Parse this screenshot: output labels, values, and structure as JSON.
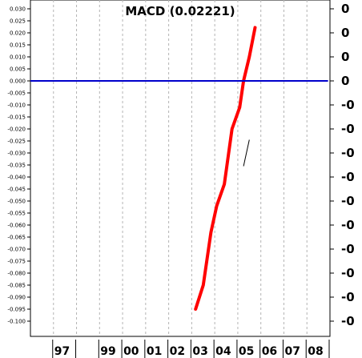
{
  "chart_data": {
    "type": "line",
    "title": "MACD (0.02221)",
    "xlabel": "",
    "ylabel": "",
    "x_tick_labels": [
      "97",
      "99",
      "00",
      "01",
      "02",
      "03",
      "04",
      "05",
      "06",
      "07",
      "08"
    ],
    "y_ticks_left": [
      "0.030",
      "0.025",
      "0.020",
      "0.015",
      "0.010",
      "0.005",
      "0.000",
      "-0.005",
      "-0.010",
      "-0.015",
      "-0.020",
      "-0.025",
      "-0.030",
      "-0.035",
      "-0.040",
      "-0.045",
      "-0.050",
      "-0.055",
      "-0.060",
      "-0.065",
      "-0.070",
      "-0.075",
      "-0.080",
      "-0.085",
      "-0.090",
      "-0.095",
      "-0.100"
    ],
    "y_ticks_right": [
      "0",
      "0",
      "0",
      "0",
      "-0",
      "-0",
      "-0",
      "-0",
      "-0",
      "-0",
      "-0",
      "-0",
      "-0",
      "-0"
    ],
    "ylim": [
      -0.105,
      0.032
    ],
    "grid": true,
    "colors": {
      "macd": "#ff0000",
      "zero_line": "#0000cc",
      "signal": "#000000",
      "grid": "#b4b4b4"
    },
    "series": [
      {
        "role": "macd",
        "x": [
          "2003-03",
          "2003-07",
          "2003-11",
          "2004-02",
          "2004-06",
          "2004-10",
          "2005-02",
          "2005-04",
          "2005-07",
          "2005-10"
        ],
        "y": [
          -0.095,
          -0.085,
          -0.063,
          -0.052,
          -0.043,
          -0.02,
          -0.011,
          0.0,
          0.01,
          0.0222
        ]
      },
      {
        "role": "signal",
        "x": [
          "2005-04",
          "2005-07"
        ],
        "y": [
          -0.0355,
          -0.0245
        ]
      },
      {
        "role": "zero",
        "x": [
          "1996-01",
          "2008-12"
        ],
        "y": [
          0.0,
          0.0
        ]
      }
    ]
  }
}
